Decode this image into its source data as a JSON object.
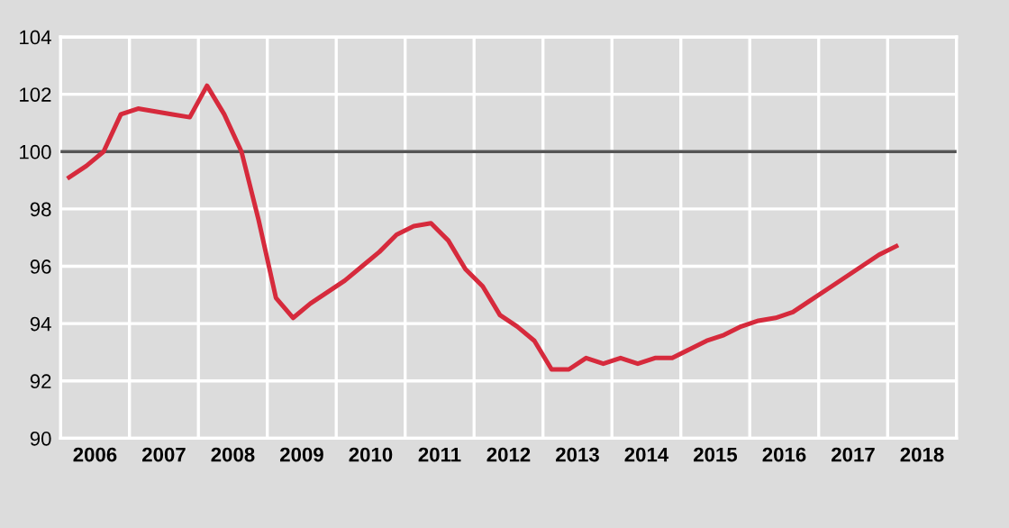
{
  "chart_data": {
    "type": "line",
    "x": [
      2006.125,
      2006.375,
      2006.625,
      2006.875,
      2007.125,
      2007.375,
      2007.625,
      2007.875,
      2008.125,
      2008.375,
      2008.625,
      2008.875,
      2009.125,
      2009.375,
      2009.625,
      2009.875,
      2010.125,
      2010.375,
      2010.625,
      2010.875,
      2011.125,
      2011.375,
      2011.625,
      2011.875,
      2012.125,
      2012.375,
      2012.625,
      2012.875,
      2013.125,
      2013.375,
      2013.625,
      2013.875,
      2014.125,
      2014.375,
      2014.625,
      2014.875,
      2015.125,
      2015.375,
      2015.625,
      2015.875,
      2016.125,
      2016.375,
      2016.625,
      2016.875,
      2017.125,
      2017.375,
      2017.625,
      2017.875,
      2018.125
    ],
    "series": [
      {
        "color": "#d62a3c",
        "values": [
          99.1,
          99.5,
          100.0,
          101.3,
          101.5,
          101.4,
          101.3,
          101.2,
          102.3,
          101.3,
          100.0,
          97.6,
          94.9,
          94.2,
          94.7,
          95.1,
          95.5,
          96.0,
          96.5,
          97.1,
          97.4,
          97.5,
          96.9,
          95.9,
          95.3,
          94.3,
          93.9,
          93.4,
          92.4,
          92.4,
          92.8,
          92.6,
          92.8,
          92.6,
          92.8,
          92.8,
          93.1,
          93.4,
          93.6,
          93.9,
          94.1,
          94.2,
          94.4,
          94.8,
          95.2,
          95.6,
          96.0,
          96.4,
          96.7
        ]
      }
    ],
    "xlim": [
      2006,
      2019
    ],
    "xticks": [
      {
        "value": 2006,
        "label": null
      },
      {
        "value": 2006.5,
        "label": "2006"
      },
      {
        "value": 2007,
        "label": null
      },
      {
        "value": 2007.5,
        "label": "2007"
      },
      {
        "value": 2008,
        "label": null
      },
      {
        "value": 2008.5,
        "label": "2008"
      },
      {
        "value": 2009,
        "label": null
      },
      {
        "value": 2009.5,
        "label": "2009"
      },
      {
        "value": 2010,
        "label": null
      },
      {
        "value": 2010.5,
        "label": "2010"
      },
      {
        "value": 2011,
        "label": null
      },
      {
        "value": 2011.5,
        "label": "2011"
      },
      {
        "value": 2012,
        "label": null
      },
      {
        "value": 2012.5,
        "label": "2012"
      },
      {
        "value": 2013,
        "label": null
      },
      {
        "value": 2013.5,
        "label": "2013"
      },
      {
        "value": 2014,
        "label": null
      },
      {
        "value": 2014.5,
        "label": "2014"
      },
      {
        "value": 2015,
        "label": null
      },
      {
        "value": 2015.5,
        "label": "2015"
      },
      {
        "value": 2016,
        "label": null
      },
      {
        "value": 2016.5,
        "label": "2016"
      },
      {
        "value": 2017,
        "label": null
      },
      {
        "value": 2017.5,
        "label": "2017"
      },
      {
        "value": 2018,
        "label": null
      },
      {
        "value": 2018.5,
        "label": "2018"
      },
      {
        "value": 2019,
        "label": null
      }
    ],
    "ylim": [
      90,
      104
    ],
    "yticks": [
      90,
      92,
      94,
      96,
      98,
      100,
      102,
      104
    ],
    "ref_lines": [
      {
        "axis": "y",
        "value": 100,
        "color": "#555555"
      }
    ],
    "grid": true,
    "marker": "none",
    "line_style": "solid"
  }
}
